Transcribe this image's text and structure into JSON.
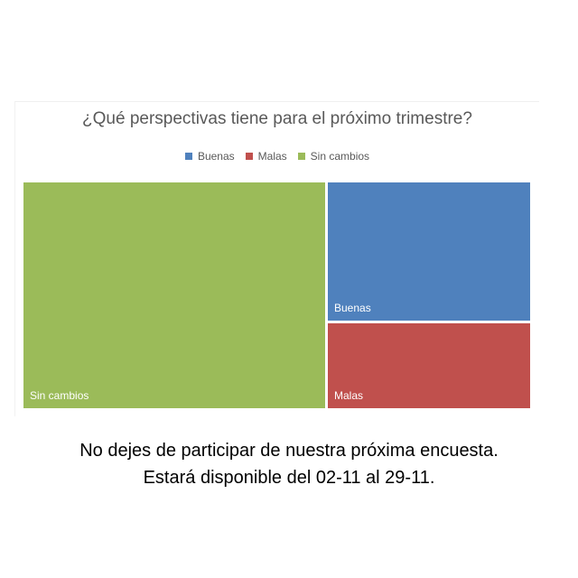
{
  "chart_data": {
    "type": "treemap",
    "title": "¿Qué perspectivas tiene para el próximo trimestre?",
    "legend": {
      "placement": "top",
      "entries": [
        {
          "label": "Buenas",
          "color": "#4f81bd"
        },
        {
          "label": "Malas",
          "color": "#c0504d"
        },
        {
          "label": "Sin cambios",
          "color": "#9bbb59"
        }
      ]
    },
    "series": [
      {
        "name": "Sin cambios",
        "value": 60,
        "color": "#9bbb59"
      },
      {
        "name": "Buenas",
        "value": 25,
        "color": "#4f81bd"
      },
      {
        "name": "Malas",
        "value": 15,
        "color": "#c0504d"
      }
    ]
  },
  "footer": {
    "line1": "No dejes de participar de nuestra próxima encuesta.",
    "line2": "Estará disponible del 02-11 al 29-11."
  }
}
